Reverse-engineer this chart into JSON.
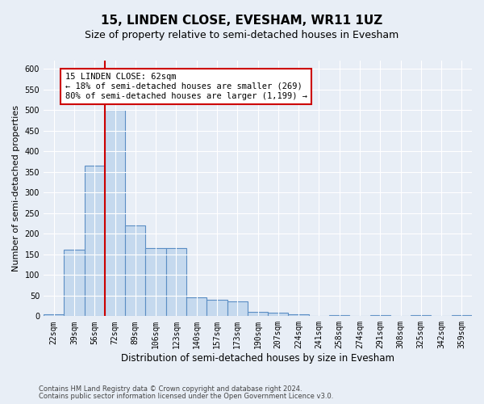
{
  "title": "15, LINDEN CLOSE, EVESHAM, WR11 1UZ",
  "subtitle": "Size of property relative to semi-detached houses in Evesham",
  "xlabel": "Distribution of semi-detached houses by size in Evesham",
  "ylabel": "Number of semi-detached properties",
  "categories": [
    "22sqm",
    "39sqm",
    "56sqm",
    "72sqm",
    "89sqm",
    "106sqm",
    "123sqm",
    "140sqm",
    "157sqm",
    "173sqm",
    "190sqm",
    "207sqm",
    "224sqm",
    "241sqm",
    "258sqm",
    "274sqm",
    "291sqm",
    "308sqm",
    "325sqm",
    "342sqm",
    "359sqm"
  ],
  "values": [
    5,
    162,
    365,
    500,
    220,
    165,
    165,
    45,
    40,
    35,
    10,
    8,
    5,
    0,
    3,
    0,
    3,
    0,
    3,
    0,
    3
  ],
  "bar_color": "#c5d9ee",
  "bar_edgecolor": "#5b8ec4",
  "vline_x": 2.5,
  "vline_color": "#cc0000",
  "annotation_text": "15 LINDEN CLOSE: 62sqm\n← 18% of semi-detached houses are smaller (269)\n80% of semi-detached houses are larger (1,199) →",
  "annotation_box_color": "white",
  "annotation_box_edgecolor": "#cc0000",
  "ylim": [
    0,
    620
  ],
  "yticks": [
    0,
    50,
    100,
    150,
    200,
    250,
    300,
    350,
    400,
    450,
    500,
    550,
    600
  ],
  "footer1": "Contains HM Land Registry data © Crown copyright and database right 2024.",
  "footer2": "Contains public sector information licensed under the Open Government Licence v3.0.",
  "background_color": "#e8eef6",
  "plot_bg_color": "#e8eef6",
  "title_fontsize": 11,
  "subtitle_fontsize": 9,
  "tick_fontsize": 7,
  "ylabel_fontsize": 8,
  "xlabel_fontsize": 8.5,
  "footer_fontsize": 6,
  "annot_fontsize": 7.5
}
